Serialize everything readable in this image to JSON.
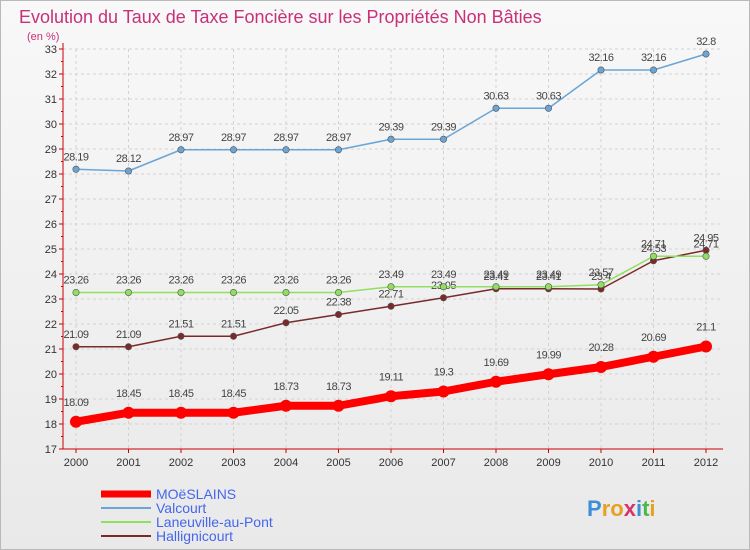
{
  "chart_data": {
    "type": "line",
    "title": "Evolution du Taux de Taxe Foncière sur les Propriétés Non Bâties",
    "subtitle": "(en %)",
    "x": [
      "2000",
      "2001",
      "2002",
      "2003",
      "2004",
      "2005",
      "2006",
      "2007",
      "2008",
      "2009",
      "2010",
      "2011",
      "2012"
    ],
    "ylim": [
      17,
      33
    ],
    "yticks": [
      17,
      18,
      19,
      20,
      21,
      22,
      23,
      24,
      25,
      26,
      27,
      28,
      29,
      30,
      31,
      32,
      33
    ],
    "grid": true,
    "legend_position": "bottom-left",
    "series": [
      {
        "name": "MOëSLAINS",
        "color": "#ff0000",
        "values": [
          18.09,
          18.45,
          18.45,
          18.45,
          18.73,
          18.73,
          19.11,
          19.3,
          19.69,
          19.99,
          20.28,
          20.69,
          21.1
        ],
        "labels": [
          "18.09",
          "18.45",
          "18.45",
          "18.45",
          "18.73",
          "18.73",
          "19.11",
          "19.3",
          "19.69",
          "19.99",
          "20.28",
          "20.69",
          "21.1"
        ]
      },
      {
        "name": "Valcourt",
        "color": "#6aa5d6",
        "values": [
          28.19,
          28.12,
          28.97,
          28.97,
          28.97,
          28.97,
          29.39,
          29.39,
          30.63,
          30.63,
          32.16,
          32.16,
          32.8
        ],
        "labels": [
          "28.19",
          "28.12",
          "28.97",
          "28.97",
          "28.97",
          "28.97",
          "29.39",
          "29.39",
          "30.63",
          "30.63",
          "32.16",
          "32.16",
          "32.8"
        ]
      },
      {
        "name": "Laneuville-au-Pont",
        "color": "#90e060",
        "values": [
          23.26,
          23.26,
          23.26,
          23.26,
          23.26,
          23.26,
          23.49,
          23.49,
          23.49,
          23.49,
          23.57,
          24.71,
          24.71
        ],
        "labels": [
          "23.26",
          "23.26",
          "23.26",
          "23.26",
          "23.26",
          "23.26",
          "23.49",
          "23.49",
          "23.49",
          "23.49",
          "23.57",
          "24.71",
          "24.71"
        ]
      },
      {
        "name": "Hallignicourt",
        "color": "#7a2a2a",
        "values": [
          21.09,
          21.09,
          21.51,
          21.51,
          22.05,
          22.38,
          22.71,
          23.05,
          23.41,
          23.41,
          23.4,
          24.53,
          24.95
        ],
        "labels": [
          "21.09",
          "21.09",
          "21.51",
          "21.51",
          "22.05",
          "22.38",
          "22.71",
          "23.05",
          "23.41",
          "23.41",
          "23.4",
          "24.53",
          "24.95"
        ]
      }
    ]
  },
  "logo": {
    "p": "P",
    "r": "r",
    "o": "o",
    "x": "x",
    "i1": "i",
    "t": "t",
    "i2": "i"
  }
}
